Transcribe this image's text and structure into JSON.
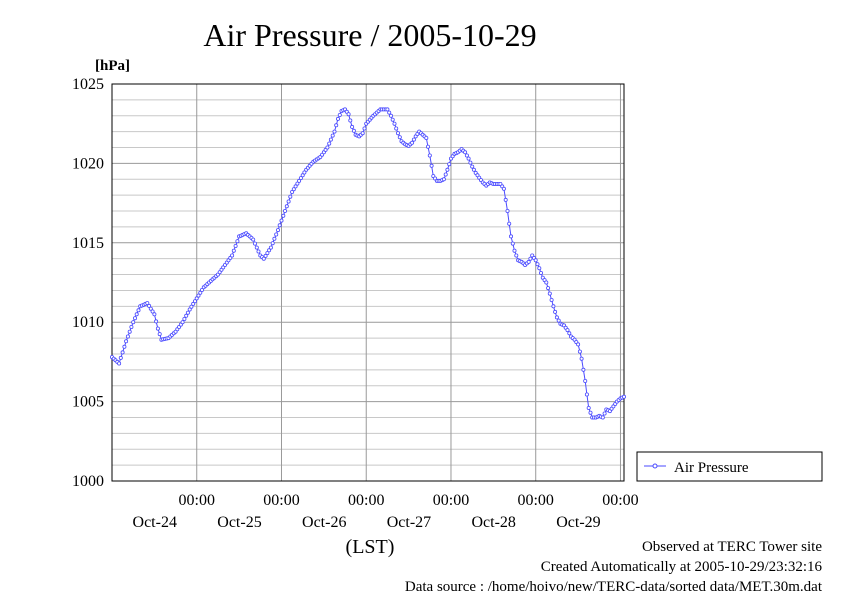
{
  "chart_data": {
    "type": "line",
    "title": "Air Pressure / 2005-10-29",
    "ylabel": "[hPa]",
    "xlabel": "(LST)",
    "ylim": [
      1000,
      1025
    ],
    "yticks": [
      1000,
      1005,
      1010,
      1015,
      1020,
      1025
    ],
    "xlim_hours": [
      0,
      145
    ],
    "x_unit": "hours from 2005-10-23 00:00 LST",
    "xticks": [
      {
        "time": "00:00",
        "date": "Oct-24"
      },
      {
        "time": "00:00",
        "date": "Oct-25"
      },
      {
        "time": "00:00",
        "date": "Oct-26"
      },
      {
        "time": "00:00",
        "date": "Oct-27"
      },
      {
        "time": "00:00",
        "date": "Oct-28"
      },
      {
        "time": "00:00",
        "date": "Oct-29"
      }
    ],
    "grid": true,
    "legend_position": "right",
    "series": [
      {
        "name": "Air Pressure",
        "color": "#4a4aff",
        "points": [
          [
            0,
            1007.8
          ],
          [
            2,
            1007.4
          ],
          [
            4,
            1008.8
          ],
          [
            6,
            1010.0
          ],
          [
            8,
            1011.0
          ],
          [
            10,
            1011.2
          ],
          [
            12,
            1010.5
          ],
          [
            13,
            1009.6
          ],
          [
            14,
            1008.9
          ],
          [
            16,
            1009.0
          ],
          [
            18,
            1009.4
          ],
          [
            20,
            1010.0
          ],
          [
            22,
            1010.8
          ],
          [
            24,
            1011.5
          ],
          [
            26,
            1012.2
          ],
          [
            28,
            1012.6
          ],
          [
            30,
            1013.0
          ],
          [
            32,
            1013.6
          ],
          [
            34,
            1014.2
          ],
          [
            35,
            1014.8
          ],
          [
            36,
            1015.4
          ],
          [
            38,
            1015.6
          ],
          [
            40,
            1015.2
          ],
          [
            42,
            1014.2
          ],
          [
            43,
            1014.0
          ],
          [
            45,
            1014.7
          ],
          [
            47,
            1015.8
          ],
          [
            49,
            1017.0
          ],
          [
            51,
            1018.2
          ],
          [
            53,
            1018.9
          ],
          [
            55,
            1019.6
          ],
          [
            57,
            1020.1
          ],
          [
            59,
            1020.4
          ],
          [
            61,
            1021.0
          ],
          [
            63,
            1022.0
          ],
          [
            64,
            1022.8
          ],
          [
            65,
            1023.3
          ],
          [
            66,
            1023.4
          ],
          [
            67,
            1023.1
          ],
          [
            68,
            1022.3
          ],
          [
            69,
            1021.8
          ],
          [
            70,
            1021.7
          ],
          [
            71,
            1021.9
          ],
          [
            72,
            1022.5
          ],
          [
            74,
            1023.0
          ],
          [
            76,
            1023.4
          ],
          [
            78,
            1023.4
          ],
          [
            79,
            1023.0
          ],
          [
            80,
            1022.5
          ],
          [
            81,
            1021.9
          ],
          [
            82,
            1021.4
          ],
          [
            83,
            1021.2
          ],
          [
            84,
            1021.1
          ],
          [
            85,
            1021.3
          ],
          [
            86,
            1021.7
          ],
          [
            87,
            1022.0
          ],
          [
            88,
            1021.8
          ],
          [
            89,
            1021.6
          ],
          [
            90,
            1020.5
          ],
          [
            91,
            1019.2
          ],
          [
            92,
            1018.9
          ],
          [
            93,
            1018.9
          ],
          [
            94,
            1019.0
          ],
          [
            95,
            1019.6
          ],
          [
            96,
            1020.3
          ],
          [
            97,
            1020.6
          ],
          [
            98,
            1020.7
          ],
          [
            99,
            1020.9
          ],
          [
            100,
            1020.7
          ],
          [
            101,
            1020.3
          ],
          [
            102,
            1019.8
          ],
          [
            103,
            1019.4
          ],
          [
            104,
            1019.1
          ],
          [
            105,
            1018.8
          ],
          [
            106,
            1018.6
          ],
          [
            107,
            1018.8
          ],
          [
            108,
            1018.7
          ],
          [
            110,
            1018.7
          ],
          [
            111,
            1018.4
          ],
          [
            112,
            1017.0
          ],
          [
            113,
            1015.4
          ],
          [
            114,
            1014.5
          ],
          [
            115,
            1013.9
          ],
          [
            116,
            1013.8
          ],
          [
            117,
            1013.6
          ],
          [
            118,
            1013.8
          ],
          [
            119,
            1014.2
          ],
          [
            120,
            1013.9
          ],
          [
            121,
            1013.4
          ],
          [
            122,
            1012.8
          ],
          [
            123,
            1012.5
          ],
          [
            124,
            1011.8
          ],
          [
            125,
            1011.0
          ],
          [
            126,
            1010.3
          ],
          [
            127,
            1009.9
          ],
          [
            128,
            1009.8
          ],
          [
            129,
            1009.5
          ],
          [
            130,
            1009.1
          ],
          [
            131,
            1008.9
          ],
          [
            132,
            1008.6
          ],
          [
            133,
            1007.7
          ],
          [
            134,
            1006.3
          ],
          [
            135,
            1004.6
          ],
          [
            136,
            1004.0
          ],
          [
            137,
            1004.0
          ],
          [
            138,
            1004.1
          ],
          [
            139,
            1004.0
          ],
          [
            140,
            1004.5
          ],
          [
            141,
            1004.4
          ],
          [
            142,
            1004.7
          ],
          [
            143,
            1005.0
          ],
          [
            144,
            1005.2
          ],
          [
            145,
            1005.3
          ]
        ]
      }
    ]
  },
  "footer": {
    "observed": "Observed at TERC Tower site",
    "created": "Created Automatically at 2005-10-29/23:32:16",
    "source": "Data source : /home/hoivo/new/TERC-data/sorted  data/MET.30m.dat"
  }
}
